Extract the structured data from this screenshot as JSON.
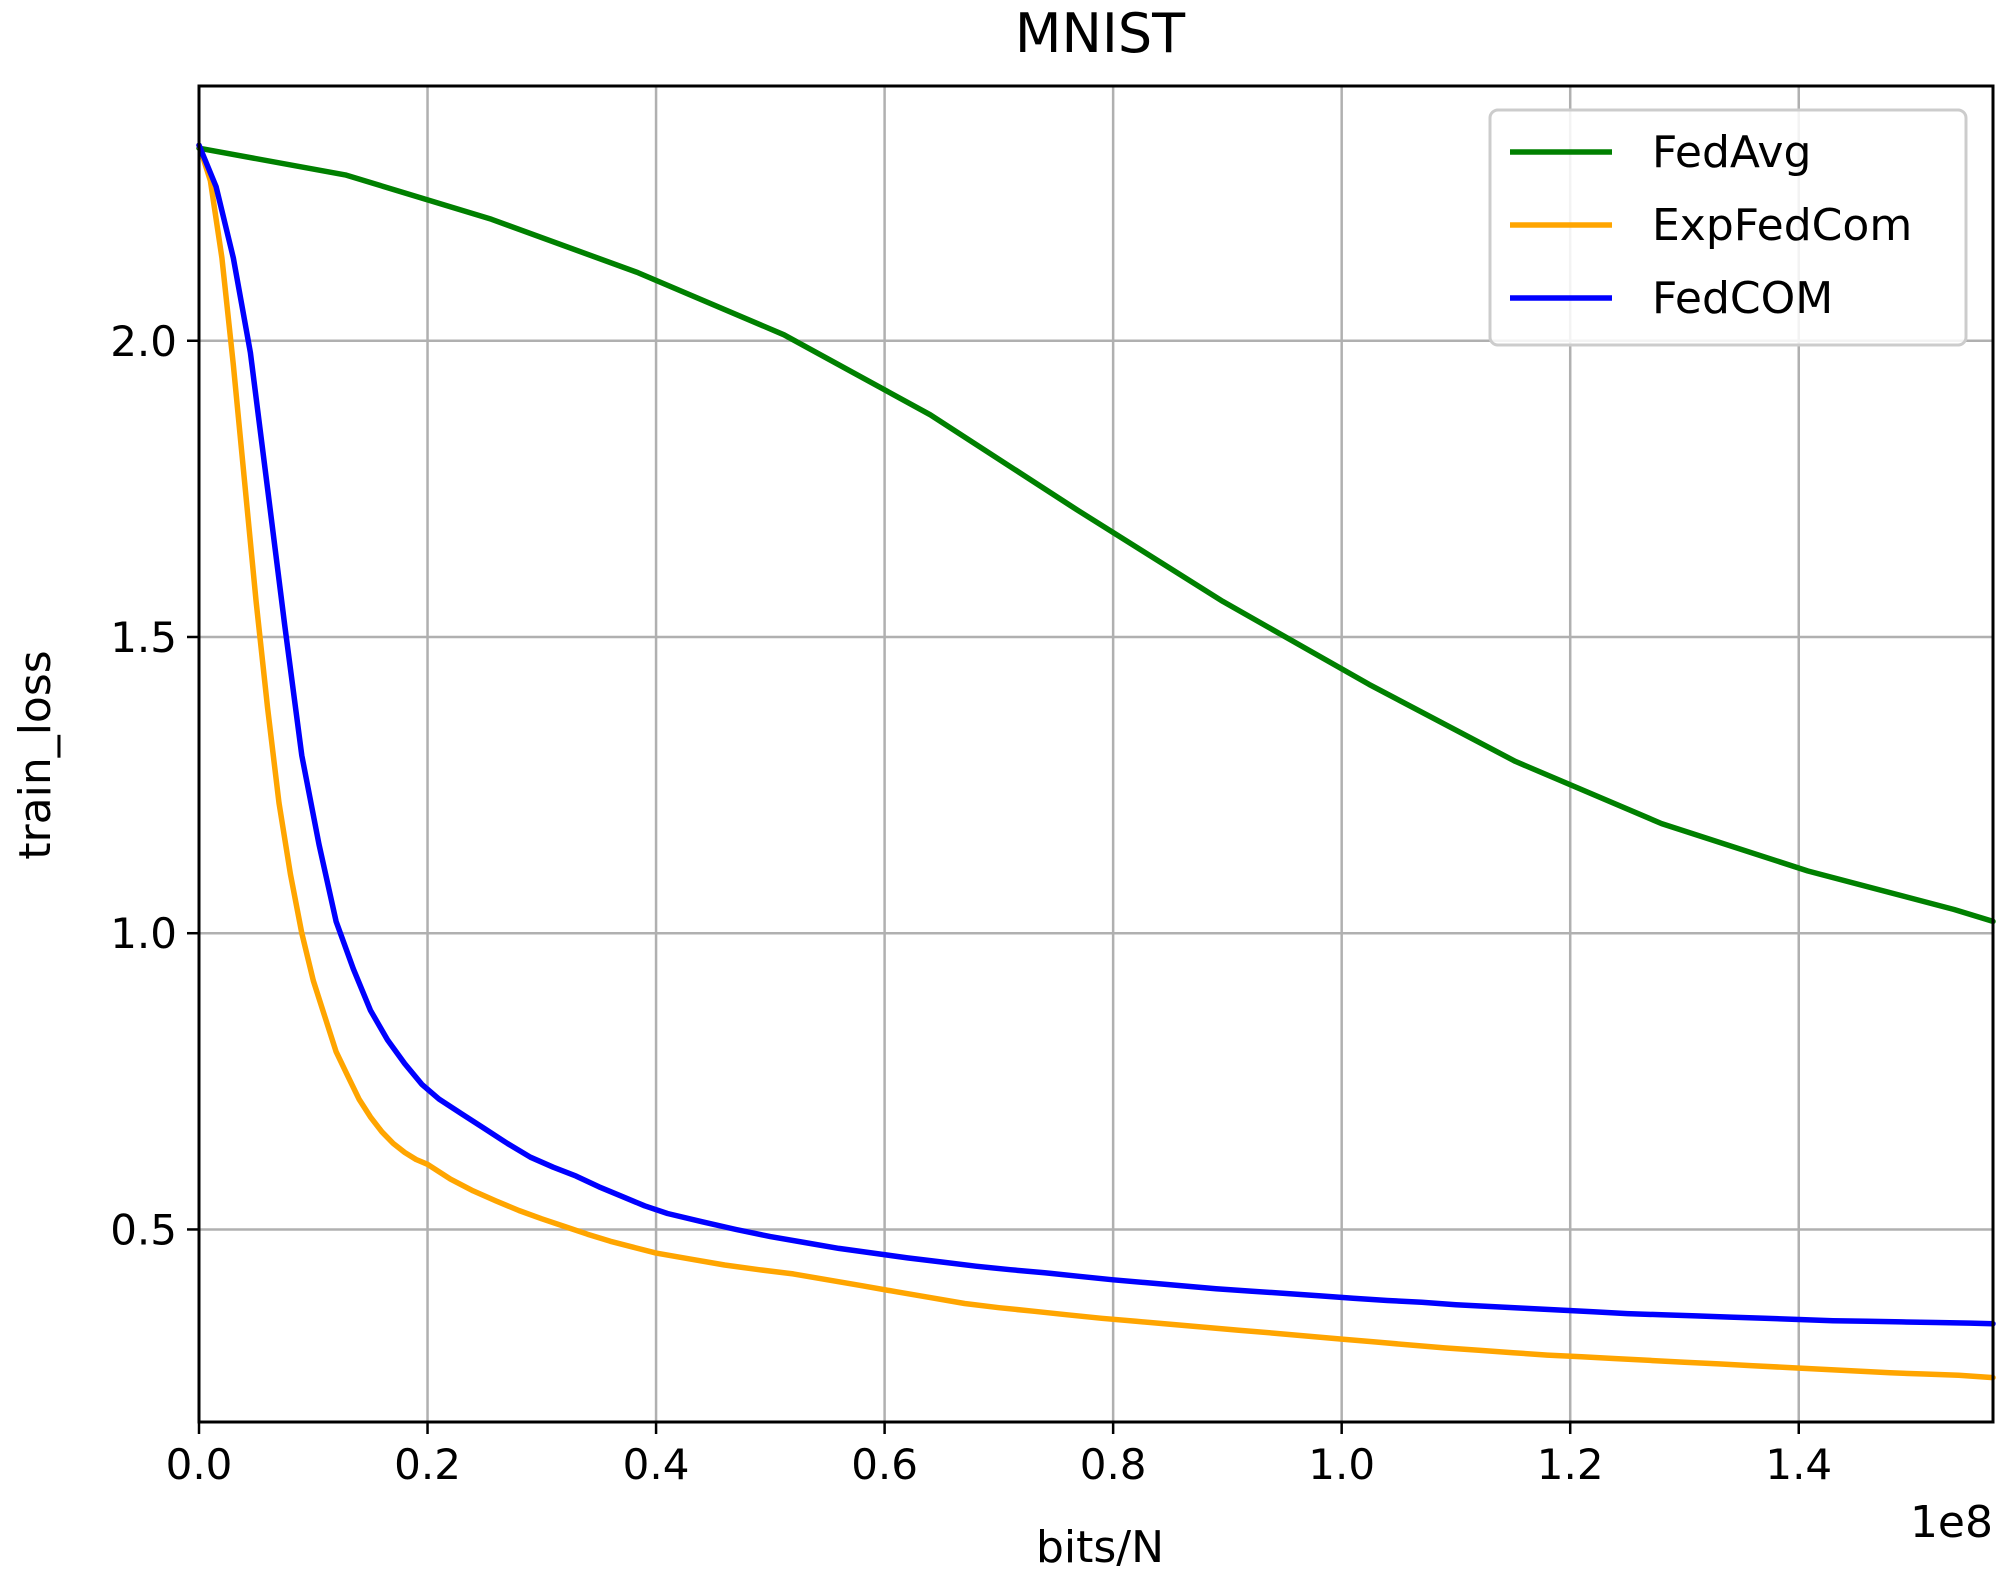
{
  "chart_data": {
    "type": "line",
    "title": "MNIST",
    "xlabel": "bits/N",
    "ylabel": "train_loss",
    "x_offset_text": "1e8",
    "xlim": [
      0.0,
      1.57
    ],
    "ylim": [
      0.175,
      2.43
    ],
    "xticks": [
      0.0,
      0.2,
      0.4,
      0.6,
      0.8,
      1.0,
      1.2,
      1.4
    ],
    "xtick_labels": [
      "0.0",
      "0.2",
      "0.4",
      "0.6",
      "0.8",
      "1.0",
      "1.2",
      "1.4"
    ],
    "yticks": [
      0.5,
      1.0,
      1.5,
      2.0
    ],
    "ytick_labels": [
      "0.5",
      "1.0",
      "1.5",
      "2.0"
    ],
    "grid": true,
    "legend_position": "top-right",
    "series": [
      {
        "name": "FedAvg",
        "color": "#008000",
        "x": [
          0.0,
          0.128,
          0.256,
          0.384,
          0.512,
          0.64,
          0.768,
          0.896,
          1.024,
          1.152,
          1.28,
          1.408,
          1.536,
          1.57
        ],
        "y": [
          2.325,
          2.28,
          2.205,
          2.115,
          2.01,
          1.875,
          1.715,
          1.56,
          1.42,
          1.29,
          1.185,
          1.105,
          1.04,
          1.02
        ]
      },
      {
        "name": "ExpFedCom",
        "color": "#FFA500",
        "x": [
          0.0,
          0.01,
          0.02,
          0.03,
          0.04,
          0.05,
          0.06,
          0.07,
          0.08,
          0.09,
          0.1,
          0.11,
          0.12,
          0.13,
          0.14,
          0.15,
          0.16,
          0.17,
          0.18,
          0.19,
          0.2,
          0.22,
          0.24,
          0.26,
          0.28,
          0.3,
          0.32,
          0.34,
          0.36,
          0.38,
          0.4,
          0.43,
          0.46,
          0.49,
          0.52,
          0.55,
          0.58,
          0.61,
          0.64,
          0.67,
          0.7,
          0.73,
          0.76,
          0.79,
          0.82,
          0.85,
          0.88,
          0.91,
          0.94,
          0.97,
          1.0,
          1.03,
          1.06,
          1.09,
          1.12,
          1.15,
          1.18,
          1.21,
          1.24,
          1.27,
          1.3,
          1.33,
          1.36,
          1.39,
          1.42,
          1.45,
          1.48,
          1.51,
          1.54,
          1.57
        ],
        "y": [
          2.33,
          2.27,
          2.14,
          1.96,
          1.76,
          1.56,
          1.38,
          1.22,
          1.1,
          1.0,
          0.92,
          0.86,
          0.8,
          0.76,
          0.72,
          0.69,
          0.665,
          0.645,
          0.63,
          0.618,
          0.61,
          0.585,
          0.565,
          0.548,
          0.532,
          0.518,
          0.505,
          0.492,
          0.48,
          0.47,
          0.46,
          0.45,
          0.44,
          0.432,
          0.425,
          0.415,
          0.405,
          0.395,
          0.385,
          0.375,
          0.368,
          0.362,
          0.356,
          0.35,
          0.345,
          0.34,
          0.335,
          0.33,
          0.325,
          0.32,
          0.315,
          0.31,
          0.305,
          0.3,
          0.296,
          0.292,
          0.288,
          0.285,
          0.282,
          0.279,
          0.276,
          0.273,
          0.27,
          0.267,
          0.264,
          0.261,
          0.258,
          0.256,
          0.254,
          0.25
        ]
      },
      {
        "name": "FedCOM",
        "color": "#0000FF",
        "x": [
          0.0,
          0.015,
          0.03,
          0.045,
          0.06,
          0.075,
          0.09,
          0.105,
          0.12,
          0.135,
          0.15,
          0.165,
          0.18,
          0.195,
          0.21,
          0.23,
          0.25,
          0.27,
          0.29,
          0.31,
          0.33,
          0.35,
          0.37,
          0.39,
          0.41,
          0.44,
          0.47,
          0.5,
          0.53,
          0.56,
          0.59,
          0.62,
          0.65,
          0.68,
          0.71,
          0.74,
          0.77,
          0.8,
          0.83,
          0.86,
          0.89,
          0.92,
          0.95,
          0.98,
          1.01,
          1.04,
          1.07,
          1.1,
          1.13,
          1.16,
          1.19,
          1.22,
          1.25,
          1.28,
          1.31,
          1.34,
          1.37,
          1.4,
          1.43,
          1.46,
          1.49,
          1.52,
          1.55,
          1.57
        ],
        "y": [
          2.33,
          2.26,
          2.14,
          1.98,
          1.75,
          1.52,
          1.3,
          1.15,
          1.02,
          0.94,
          0.87,
          0.82,
          0.78,
          0.745,
          0.72,
          0.695,
          0.67,
          0.645,
          0.622,
          0.605,
          0.59,
          0.572,
          0.556,
          0.54,
          0.527,
          0.513,
          0.5,
          0.488,
          0.478,
          0.468,
          0.46,
          0.452,
          0.445,
          0.438,
          0.432,
          0.427,
          0.421,
          0.415,
          0.41,
          0.405,
          0.4,
          0.396,
          0.392,
          0.388,
          0.384,
          0.38,
          0.377,
          0.373,
          0.37,
          0.367,
          0.364,
          0.361,
          0.358,
          0.356,
          0.354,
          0.352,
          0.35,
          0.348,
          0.346,
          0.345,
          0.344,
          0.343,
          0.342,
          0.341
        ]
      }
    ]
  }
}
